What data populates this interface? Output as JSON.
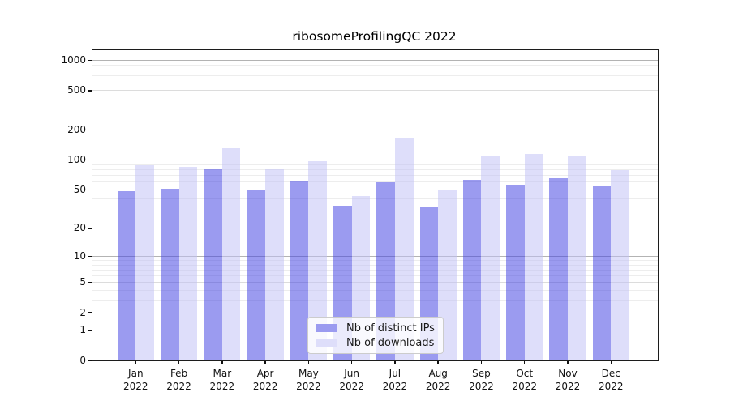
{
  "chart_data": {
    "type": "bar",
    "title": "ribosomeProfilingQC 2022",
    "categories": [
      "Jan",
      "Feb",
      "Mar",
      "Apr",
      "May",
      "Jun",
      "Jul",
      "Aug",
      "Sep",
      "Oct",
      "Nov",
      "Dec"
    ],
    "category_year": "2022",
    "series": [
      {
        "name": "Nb of distinct IPs",
        "color": "#9b9bf0",
        "fill_rgba": "rgba(63,63,226,0.52)",
        "values": [
          48,
          51,
          80,
          50,
          62,
          34,
          60,
          33,
          63,
          55,
          66,
          54
        ]
      },
      {
        "name": "Nb of downloads",
        "color": "#dedefa",
        "fill_rgba": "rgba(192,192,245,0.52)",
        "values": [
          88,
          85,
          131,
          81,
          97,
          43,
          168,
          49,
          109,
          115,
          112,
          79
        ]
      }
    ],
    "yscale": "log1p",
    "ylim": [
      0,
      1267
    ],
    "yticks": [
      1000,
      500,
      200,
      100,
      50,
      20,
      10,
      5,
      2,
      1,
      0
    ],
    "grid": true,
    "legend_position": "lower center",
    "style": {
      "grid_major": "#b3b3b3",
      "grid_labeled": "#dcdcdc",
      "grid_minor": "#ededed",
      "frame": "#1c1c1c",
      "background": "#ffffff"
    }
  }
}
